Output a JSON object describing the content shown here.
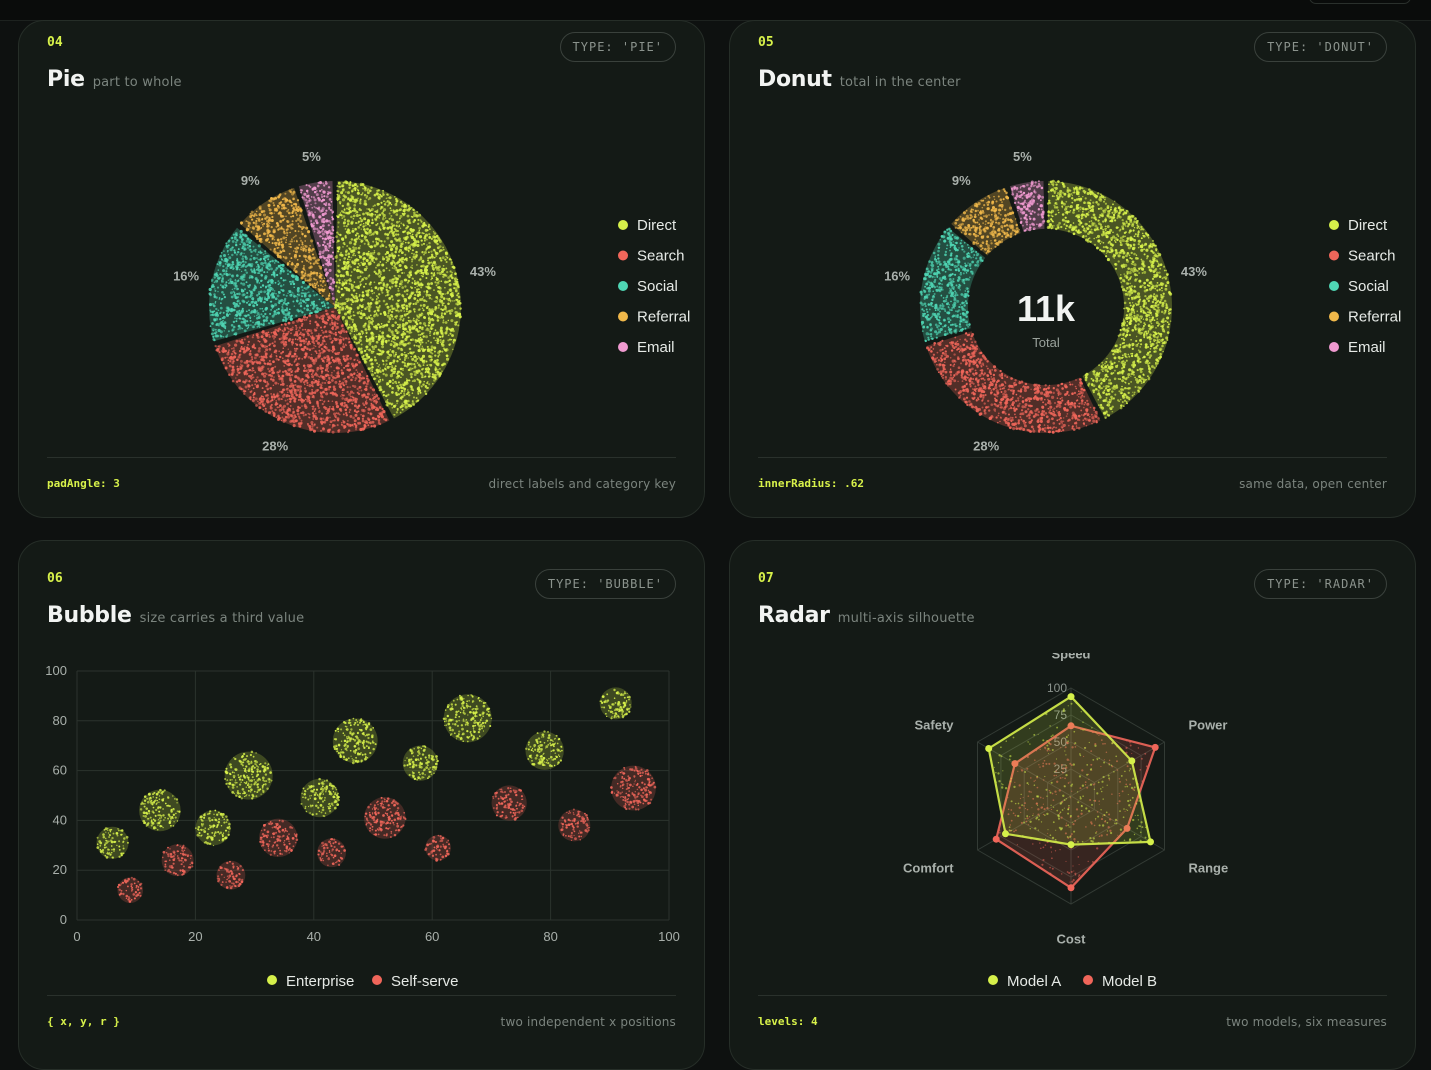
{
  "colors": {
    "direct": "#d6f04a",
    "search": "#f0665a",
    "social": "#4fd6b4",
    "referral": "#f0b84a",
    "email": "#f09ad0",
    "accent": "#d8f24a",
    "enterprise": "#d6f04a",
    "self_serve": "#f0665a"
  },
  "cards": {
    "pie": {
      "number": "04",
      "title": "Pie",
      "subtitle": "part to whole",
      "badge": "TYPE: 'PIE'",
      "footer_left": "padAngle: 3",
      "footer_right": "direct labels and category key"
    },
    "donut": {
      "number": "05",
      "title": "Donut",
      "subtitle": "total in the center",
      "badge": "TYPE: 'DONUT'",
      "center_value": "11k",
      "center_label": "Total",
      "footer_left": "innerRadius: .62",
      "footer_right": "same data, open center"
    },
    "bubble": {
      "number": "06",
      "title": "Bubble",
      "subtitle": "size carries a third value",
      "badge": "TYPE: 'BUBBLE'",
      "footer_left": "{ x, y, r }",
      "footer_right": "two independent x positions"
    },
    "radar": {
      "number": "07",
      "title": "Radar",
      "subtitle": "multi-axis silhouette",
      "badge": "TYPE: 'RADAR'",
      "footer_left": "levels: 4",
      "footer_right": "two models, six measures"
    }
  },
  "chart_data": [
    {
      "type": "pie",
      "categories": [
        "Direct",
        "Search",
        "Social",
        "Referral",
        "Email"
      ],
      "values": [
        43,
        28,
        16,
        9,
        5
      ],
      "labels": [
        "43%",
        "28%",
        "16%",
        "9%",
        "5%"
      ],
      "legend": "right"
    },
    {
      "type": "donut",
      "categories": [
        "Direct",
        "Search",
        "Social",
        "Referral",
        "Email"
      ],
      "values": [
        43,
        28,
        16,
        9,
        5
      ],
      "labels": [
        "43%",
        "28%",
        "16%",
        "9%",
        "5%"
      ],
      "legend": "right"
    },
    {
      "type": "scatter",
      "xlim": [
        0,
        100
      ],
      "ylim": [
        0,
        100
      ],
      "xticks": [
        "0",
        "20",
        "40",
        "60",
        "80",
        "100"
      ],
      "yticks": [
        "0",
        "20",
        "40",
        "60",
        "80",
        "100"
      ],
      "grid": true,
      "legend": "bottom",
      "series": [
        {
          "name": "Enterprise",
          "points": [
            {
              "x": 6,
              "y": 31,
              "r": 5
            },
            {
              "x": 14,
              "y": 44,
              "r": 8
            },
            {
              "x": 23,
              "y": 37,
              "r": 6
            },
            {
              "x": 29,
              "y": 58,
              "r": 10
            },
            {
              "x": 41,
              "y": 49,
              "r": 7
            },
            {
              "x": 47,
              "y": 72,
              "r": 9
            },
            {
              "x": 58,
              "y": 63,
              "r": 6
            },
            {
              "x": 66,
              "y": 81,
              "r": 10
            },
            {
              "x": 79,
              "y": 68,
              "r": 7
            },
            {
              "x": 91,
              "y": 87,
              "r": 5
            }
          ]
        },
        {
          "name": "Self-serve",
          "points": [
            {
              "x": 9,
              "y": 12,
              "r": 3
            },
            {
              "x": 17,
              "y": 24,
              "r": 5
            },
            {
              "x": 26,
              "y": 18,
              "r": 4
            },
            {
              "x": 34,
              "y": 33,
              "r": 7
            },
            {
              "x": 43,
              "y": 27,
              "r": 4
            },
            {
              "x": 52,
              "y": 41,
              "r": 8
            },
            {
              "x": 61,
              "y": 29,
              "r": 3
            },
            {
              "x": 73,
              "y": 47,
              "r": 6
            },
            {
              "x": 84,
              "y": 38,
              "r": 5
            },
            {
              "x": 94,
              "y": 53,
              "r": 9
            }
          ]
        }
      ]
    },
    {
      "type": "radar",
      "axes": [
        "Speed",
        "Power",
        "Range",
        "Cost",
        "Comfort",
        "Safety"
      ],
      "levels": [
        "25",
        "50",
        "75",
        "100"
      ],
      "max": 100,
      "legend": "bottom",
      "series": [
        {
          "name": "Model A",
          "values": [
            92,
            65,
            85,
            45,
            70,
            88
          ]
        },
        {
          "name": "Model B",
          "values": [
            65,
            90,
            60,
            85,
            80,
            60
          ]
        }
      ]
    }
  ]
}
